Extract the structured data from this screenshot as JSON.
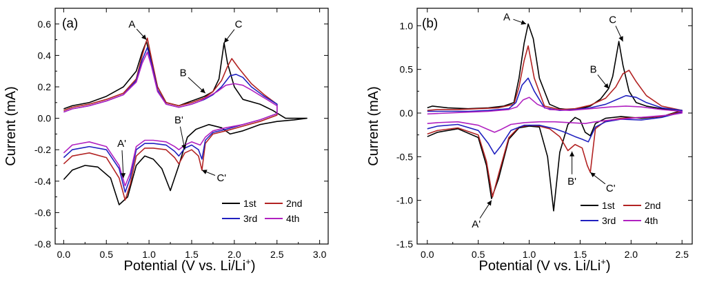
{
  "series_colors": {
    "1st": "#000000",
    "2nd": "#b22222",
    "3rd": "#1f1fbf",
    "4th": "#b020c0"
  },
  "chart_data": [
    {
      "type": "line",
      "panel_label": "(a)",
      "xlabel": "Potential  (V vs. Li/Li",
      "xlabel_sup": "+",
      "xlabel_end": ")",
      "ylabel": "Current (mA)",
      "xlim": [
        -0.1,
        3.1
      ],
      "ylim": [
        -0.8,
        0.7
      ],
      "xticks": [
        0.0,
        0.5,
        1.0,
        1.5,
        2.0,
        2.5,
        3.0
      ],
      "xtick_labels": [
        "0.0",
        "0.5",
        "1.0",
        "1.5",
        "2.0",
        "2.5",
        "3.0"
      ],
      "yticks": [
        -0.8,
        -0.6,
        -0.4,
        -0.2,
        0.0,
        0.2,
        0.4,
        0.6
      ],
      "ytick_labels": [
        "-0.8",
        "-0.6",
        "-0.4",
        "-0.2",
        "0.0",
        "0.2",
        "0.4",
        "0.6"
      ],
      "legend": [
        "1st",
        "2nd",
        "3rd",
        "4th"
      ],
      "legend_position": "bottom-right",
      "annotations": [
        {
          "text": "A",
          "at": [
            0.97,
            0.5
          ],
          "label_at": [
            0.8,
            0.6
          ]
        },
        {
          "text": "C",
          "at": [
            1.88,
            0.48
          ],
          "label_at": [
            2.05,
            0.6
          ]
        },
        {
          "text": "B",
          "at": [
            1.66,
            0.16
          ],
          "label_at": [
            1.4,
            0.29
          ]
        },
        {
          "text": "B'",
          "at": [
            1.42,
            -0.2
          ],
          "label_at": [
            1.35,
            -0.01
          ]
        },
        {
          "text": "A'",
          "at": [
            0.7,
            -0.38
          ],
          "label_at": [
            0.68,
            -0.16
          ]
        },
        {
          "text": "C'",
          "at": [
            1.62,
            -0.33
          ],
          "label_at": [
            1.85,
            -0.38
          ]
        }
      ],
      "series": [
        {
          "name": "1st",
          "x": [
            0.0,
            0.1,
            0.25,
            0.4,
            0.55,
            0.65,
            0.75,
            0.85,
            0.95,
            1.05,
            1.15,
            1.25,
            1.35,
            1.45,
            1.55,
            1.6,
            1.7,
            1.85,
            1.95,
            2.1,
            2.3,
            2.5,
            2.7,
            2.85,
            2.85,
            2.6,
            2.45,
            2.3,
            2.1,
            2.0,
            1.92,
            1.88,
            1.82,
            1.75,
            1.65,
            1.55,
            1.45,
            1.35,
            1.2,
            1.1,
            1.02,
            0.97,
            0.92,
            0.85,
            0.7,
            0.5,
            0.3,
            0.1,
            0.0
          ],
          "y": [
            -0.39,
            -0.33,
            -0.3,
            -0.31,
            -0.38,
            -0.55,
            -0.5,
            -0.3,
            -0.24,
            -0.26,
            -0.32,
            -0.46,
            -0.3,
            -0.12,
            -0.07,
            -0.06,
            -0.04,
            -0.06,
            -0.1,
            -0.08,
            -0.04,
            -0.02,
            -0.01,
            0.0,
            0.0,
            0.0,
            0.05,
            0.09,
            0.12,
            0.2,
            0.35,
            0.48,
            0.25,
            0.17,
            0.14,
            0.12,
            0.1,
            0.08,
            0.1,
            0.2,
            0.38,
            0.49,
            0.42,
            0.3,
            0.2,
            0.14,
            0.1,
            0.08,
            0.06
          ]
        },
        {
          "name": "2nd",
          "x": [
            0.0,
            0.1,
            0.3,
            0.5,
            0.65,
            0.72,
            0.78,
            0.85,
            0.95,
            1.05,
            1.2,
            1.3,
            1.35,
            1.42,
            1.5,
            1.58,
            1.62,
            1.66,
            1.75,
            1.9,
            2.1,
            2.3,
            2.5,
            2.5,
            2.35,
            2.2,
            2.05,
            1.97,
            1.92,
            1.85,
            1.75,
            1.65,
            1.5,
            1.35,
            1.2,
            1.1,
            1.03,
            0.98,
            0.92,
            0.85,
            0.7,
            0.5,
            0.3,
            0.1,
            0.0
          ],
          "y": [
            -0.29,
            -0.24,
            -0.22,
            -0.25,
            -0.38,
            -0.52,
            -0.42,
            -0.24,
            -0.19,
            -0.19,
            -0.2,
            -0.25,
            -0.29,
            -0.22,
            -0.2,
            -0.24,
            -0.33,
            -0.16,
            -0.1,
            -0.08,
            -0.05,
            -0.02,
            0.02,
            0.09,
            0.15,
            0.22,
            0.32,
            0.38,
            0.33,
            0.24,
            0.17,
            0.13,
            0.1,
            0.08,
            0.1,
            0.2,
            0.38,
            0.51,
            0.4,
            0.25,
            0.16,
            0.12,
            0.09,
            0.07,
            0.05
          ]
        },
        {
          "name": "3rd",
          "x": [
            0.0,
            0.1,
            0.3,
            0.5,
            0.65,
            0.72,
            0.78,
            0.85,
            0.95,
            1.05,
            1.2,
            1.3,
            1.35,
            1.42,
            1.5,
            1.58,
            1.62,
            1.66,
            1.75,
            1.9,
            2.1,
            2.3,
            2.5,
            2.5,
            2.35,
            2.2,
            2.1,
            2.02,
            1.95,
            1.85,
            1.75,
            1.65,
            1.5,
            1.35,
            1.2,
            1.1,
            1.03,
            0.98,
            0.92,
            0.85,
            0.7,
            0.5,
            0.3,
            0.1,
            0.0
          ],
          "y": [
            -0.25,
            -0.2,
            -0.18,
            -0.2,
            -0.32,
            -0.47,
            -0.38,
            -0.2,
            -0.16,
            -0.16,
            -0.17,
            -0.21,
            -0.24,
            -0.19,
            -0.17,
            -0.2,
            -0.26,
            -0.14,
            -0.09,
            -0.07,
            -0.04,
            -0.01,
            0.03,
            0.09,
            0.14,
            0.2,
            0.26,
            0.28,
            0.27,
            0.2,
            0.15,
            0.12,
            0.09,
            0.07,
            0.09,
            0.18,
            0.35,
            0.45,
            0.37,
            0.24,
            0.15,
            0.11,
            0.08,
            0.06,
            0.04
          ]
        },
        {
          "name": "4th",
          "x": [
            0.0,
            0.1,
            0.3,
            0.5,
            0.65,
            0.72,
            0.78,
            0.85,
            0.95,
            1.05,
            1.2,
            1.3,
            1.35,
            1.42,
            1.5,
            1.55,
            1.6,
            1.66,
            1.75,
            1.9,
            2.1,
            2.3,
            2.5,
            2.5,
            2.35,
            2.2,
            2.1,
            2.0,
            1.9,
            1.8,
            1.7,
            1.6,
            1.5,
            1.35,
            1.2,
            1.1,
            1.03,
            0.98,
            0.92,
            0.85,
            0.7,
            0.5,
            0.3,
            0.1,
            0.0
          ],
          "y": [
            -0.22,
            -0.17,
            -0.15,
            -0.18,
            -0.3,
            -0.43,
            -0.35,
            -0.18,
            -0.14,
            -0.14,
            -0.15,
            -0.18,
            -0.2,
            -0.17,
            -0.15,
            -0.16,
            -0.17,
            -0.12,
            -0.08,
            -0.06,
            -0.04,
            -0.01,
            0.03,
            0.08,
            0.13,
            0.18,
            0.21,
            0.22,
            0.21,
            0.17,
            0.14,
            0.11,
            0.09,
            0.07,
            0.09,
            0.17,
            0.33,
            0.42,
            0.35,
            0.23,
            0.15,
            0.11,
            0.08,
            0.06,
            0.04
          ]
        }
      ]
    },
    {
      "type": "line",
      "panel_label": "(b)",
      "xlabel": "Potential (V vs. Li/Li",
      "xlabel_sup": "+",
      "xlabel_end": ")",
      "ylabel": "Current (mA)",
      "xlim": [
        -0.1,
        2.6
      ],
      "ylim": [
        -1.5,
        1.2
      ],
      "xticks": [
        0.0,
        0.5,
        1.0,
        1.5,
        2.0,
        2.5
      ],
      "xtick_labels": [
        "0.0",
        "0.5",
        "1.0",
        "1.5",
        "2.0",
        "2.5"
      ],
      "yticks": [
        -1.5,
        -1.0,
        -0.5,
        0.0,
        0.5,
        1.0
      ],
      "ytick_labels": [
        "-1.5",
        "-1.0",
        "-0.5",
        "0.0",
        "0.5",
        "1.0"
      ],
      "legend": [
        "1st",
        "2nd",
        "3rd",
        "4th"
      ],
      "legend_position": "bottom-right",
      "annotations": [
        {
          "text": "A",
          "at": [
            0.97,
            1.02
          ],
          "label_at": [
            0.78,
            1.1
          ]
        },
        {
          "text": "C",
          "at": [
            1.92,
            0.82
          ],
          "label_at": [
            1.82,
            1.07
          ]
        },
        {
          "text": "B",
          "at": [
            1.78,
            0.28
          ],
          "label_at": [
            1.63,
            0.5
          ]
        },
        {
          "text": "B'",
          "at": [
            1.42,
            -0.44
          ],
          "label_at": [
            1.42,
            -0.78
          ]
        },
        {
          "text": "A'",
          "at": [
            0.63,
            -1.0
          ],
          "label_at": [
            0.48,
            -1.27
          ]
        },
        {
          "text": "C'",
          "at": [
            1.6,
            -0.68
          ],
          "label_at": [
            1.8,
            -0.86
          ]
        }
      ],
      "series": [
        {
          "name": "1st",
          "x": [
            0.0,
            0.1,
            0.3,
            0.5,
            0.58,
            0.63,
            0.7,
            0.8,
            0.9,
            1.0,
            1.1,
            1.18,
            1.24,
            1.3,
            1.38,
            1.45,
            1.5,
            1.55,
            1.6,
            1.65,
            1.75,
            1.9,
            2.1,
            2.3,
            2.5,
            2.5,
            2.3,
            2.15,
            2.05,
            1.98,
            1.92,
            1.88,
            1.82,
            1.78,
            1.7,
            1.6,
            1.5,
            1.4,
            1.3,
            1.2,
            1.1,
            1.04,
            0.99,
            0.95,
            0.9,
            0.85,
            0.75,
            0.6,
            0.4,
            0.2,
            0.05,
            0.0
          ],
          "y": [
            -0.27,
            -0.22,
            -0.18,
            -0.28,
            -0.6,
            -0.98,
            -0.75,
            -0.3,
            -0.17,
            -0.15,
            -0.16,
            -0.5,
            -1.12,
            -0.45,
            -0.13,
            -0.05,
            -0.08,
            -0.22,
            -0.26,
            -0.12,
            -0.06,
            -0.04,
            -0.06,
            -0.04,
            0.03,
            0.03,
            0.05,
            0.08,
            0.12,
            0.25,
            0.55,
            0.82,
            0.42,
            0.28,
            0.16,
            0.08,
            0.05,
            0.04,
            0.05,
            0.1,
            0.4,
            0.85,
            1.02,
            0.8,
            0.4,
            0.12,
            0.08,
            0.06,
            0.05,
            0.06,
            0.08,
            0.06
          ]
        },
        {
          "name": "2nd",
          "x": [
            0.0,
            0.1,
            0.3,
            0.5,
            0.58,
            0.64,
            0.7,
            0.8,
            0.9,
            1.0,
            1.1,
            1.2,
            1.3,
            1.38,
            1.45,
            1.52,
            1.57,
            1.6,
            1.65,
            1.75,
            1.9,
            2.1,
            2.3,
            2.5,
            2.5,
            2.3,
            2.15,
            2.05,
            1.98,
            1.92,
            1.85,
            1.75,
            1.6,
            1.45,
            1.3,
            1.15,
            1.05,
            0.99,
            0.95,
            0.9,
            0.85,
            0.7,
            0.5,
            0.3,
            0.1,
            0.0
          ],
          "y": [
            -0.24,
            -0.2,
            -0.17,
            -0.25,
            -0.55,
            -0.96,
            -0.7,
            -0.28,
            -0.16,
            -0.14,
            -0.15,
            -0.18,
            -0.27,
            -0.43,
            -0.36,
            -0.4,
            -0.6,
            -0.68,
            -0.18,
            -0.09,
            -0.06,
            -0.05,
            -0.04,
            0.02,
            0.03,
            0.08,
            0.2,
            0.36,
            0.49,
            0.45,
            0.3,
            0.17,
            0.09,
            0.05,
            0.04,
            0.08,
            0.4,
            0.77,
            0.6,
            0.3,
            0.1,
            0.06,
            0.05,
            0.04,
            0.04,
            0.03
          ]
        },
        {
          "name": "3rd",
          "x": [
            0.0,
            0.1,
            0.3,
            0.5,
            0.6,
            0.66,
            0.72,
            0.82,
            0.95,
            1.1,
            1.25,
            1.35,
            1.45,
            1.52,
            1.58,
            1.65,
            1.75,
            1.9,
            2.1,
            2.3,
            2.5,
            2.5,
            2.3,
            2.15,
            2.05,
            1.95,
            1.85,
            1.75,
            1.6,
            1.45,
            1.3,
            1.15,
            1.05,
            0.99,
            0.93,
            0.87,
            0.8,
            0.6,
            0.4,
            0.2,
            0.0
          ],
          "y": [
            -0.18,
            -0.15,
            -0.13,
            -0.2,
            -0.35,
            -0.47,
            -0.38,
            -0.2,
            -0.14,
            -0.14,
            -0.18,
            -0.22,
            -0.27,
            -0.3,
            -0.33,
            -0.16,
            -0.1,
            -0.07,
            -0.08,
            -0.05,
            0.01,
            0.03,
            0.06,
            0.12,
            0.18,
            0.2,
            0.15,
            0.1,
            0.06,
            0.04,
            0.03,
            0.06,
            0.25,
            0.4,
            0.32,
            0.12,
            0.05,
            0.03,
            0.02,
            0.02,
            0.02
          ]
        },
        {
          "name": "4th",
          "x": [
            0.0,
            0.1,
            0.3,
            0.5,
            0.6,
            0.66,
            0.72,
            0.82,
            0.95,
            1.1,
            1.25,
            1.4,
            1.55,
            1.65,
            1.8,
            2.0,
            2.2,
            2.4,
            2.5,
            2.5,
            2.3,
            2.1,
            1.95,
            1.8,
            1.6,
            1.4,
            1.2,
            1.08,
            1.0,
            0.94,
            0.88,
            0.8,
            0.6,
            0.4,
            0.2,
            0.0
          ],
          "y": [
            -0.12,
            -0.11,
            -0.1,
            -0.14,
            -0.19,
            -0.22,
            -0.19,
            -0.13,
            -0.11,
            -0.1,
            -0.1,
            -0.11,
            -0.12,
            -0.1,
            -0.08,
            -0.06,
            -0.04,
            -0.02,
            0.0,
            0.02,
            0.04,
            0.07,
            0.08,
            0.07,
            0.05,
            0.03,
            0.04,
            0.1,
            0.18,
            0.15,
            0.07,
            0.04,
            0.02,
            0.01,
            0.0,
            -0.01
          ]
        }
      ]
    }
  ]
}
